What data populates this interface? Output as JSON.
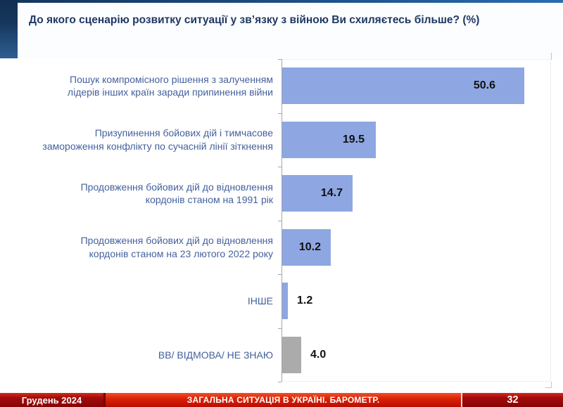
{
  "header": {
    "title": "До якого сценарію розвитку ситуації у зв’язку з війною Ви схиляєтесь більше? (%)"
  },
  "chart_data": {
    "type": "bar",
    "orientation": "horizontal",
    "title": "До якого сценарію розвитку ситуації у зв’язку з війною Ви схиляєтесь більше? (%)",
    "categories": [
      "Пошук компромісного рішення з залученням лідерів інших країн заради припинення війни",
      "Призупинення бойових дій і тимчасове замороження конфлікту по сучасній лінії зіткнення",
      "Продовження бойових дій до відновлення кордонів станом на 1991 рік",
      "Продовження бойових дій до відновлення кордонів станом на 23 лютого 2022 року",
      "ІНШЕ",
      "ВВ/ ВІДМОВА/ НЕ ЗНАЮ"
    ],
    "values": [
      50.6,
      19.5,
      14.7,
      10.2,
      1.2,
      4.0
    ],
    "value_labels": [
      "50.6",
      "19.5",
      "14.7",
      "10.2",
      "1.2",
      "4.0"
    ],
    "bar_colors": [
      "#8EA7E2",
      "#8EA7E2",
      "#8EA7E2",
      "#8EA7E2",
      "#8EA7E2",
      "#ABABAB"
    ],
    "xlabel": "",
    "ylabel": "",
    "xlim": [
      0,
      56
    ],
    "grid": false,
    "legend": false,
    "value_label_style": "bold black; inside bar end for large values, outside right for small values"
  },
  "footer": {
    "date_label": "Грудень 2024",
    "section_title": "ЗАГАЛЬНА СИТУАЦІЯ В УКРАЇНІ. БАРОМЕТР.",
    "page_number": "32"
  },
  "colors": {
    "bar_blue": "#8EA7E2",
    "bar_gray": "#ABABAB",
    "title_navy": "#1F3864",
    "category_label_blue": "#44619D",
    "axis_gray": "#A6A6A6",
    "footer_dark_red": "#A30B0B",
    "footer_bright_red": "#DA2405",
    "stripe_navy": "#17375E"
  }
}
